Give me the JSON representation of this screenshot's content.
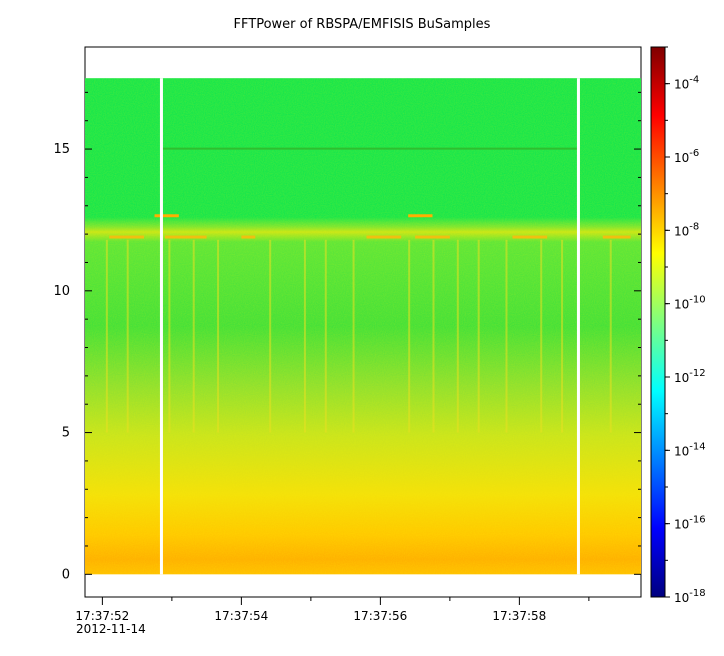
{
  "chart_data": {
    "type": "heatmap",
    "title": "FFTPower of RBSPA/EMFISIS  BuSamples",
    "xlabel": "",
    "ylabel": "",
    "x_tick_labels": [
      "17:37:52",
      "17:37:54",
      "17:37:56",
      "17:37:58"
    ],
    "x_tick_sublabel": "2012-11-14",
    "y_ticks": [
      0,
      5,
      10,
      15
    ],
    "ylim": [
      -0.8,
      18.6
    ],
    "data_ylim": [
      0,
      17.5
    ],
    "x_range_seconds_after_17_37_52": [
      -0.25,
      7.75
    ],
    "data_gaps_seconds_after_17_37_52": [
      0.85,
      6.85
    ],
    "colorbar": {
      "scale": "log",
      "range": [
        1e-18,
        0.001
      ],
      "tick_exponents": [
        -4,
        -6,
        -8,
        -10,
        -12,
        -14,
        -16,
        -18
      ],
      "tick_base": "10",
      "colormap": [
        "#00007f",
        "#0000ff",
        "#007fff",
        "#00ffff",
        "#7fff7f",
        "#ffff00",
        "#ff7f00",
        "#ff0000",
        "#7f0000"
      ]
    },
    "spectral_features": [
      {
        "description_level": "broadband",
        "freq_range": [
          0,
          12.3
        ],
        "power_log10": -9
      },
      {
        "description_level": "low-frequency enhancement",
        "freq_range": [
          0,
          2
        ],
        "power_log10": -8
      },
      {
        "description_level": "line",
        "freq": 15.0,
        "power_log10": -10.5
      },
      {
        "description_level": "line",
        "freq": 12.65,
        "power_log10": -8
      }
    ]
  }
}
